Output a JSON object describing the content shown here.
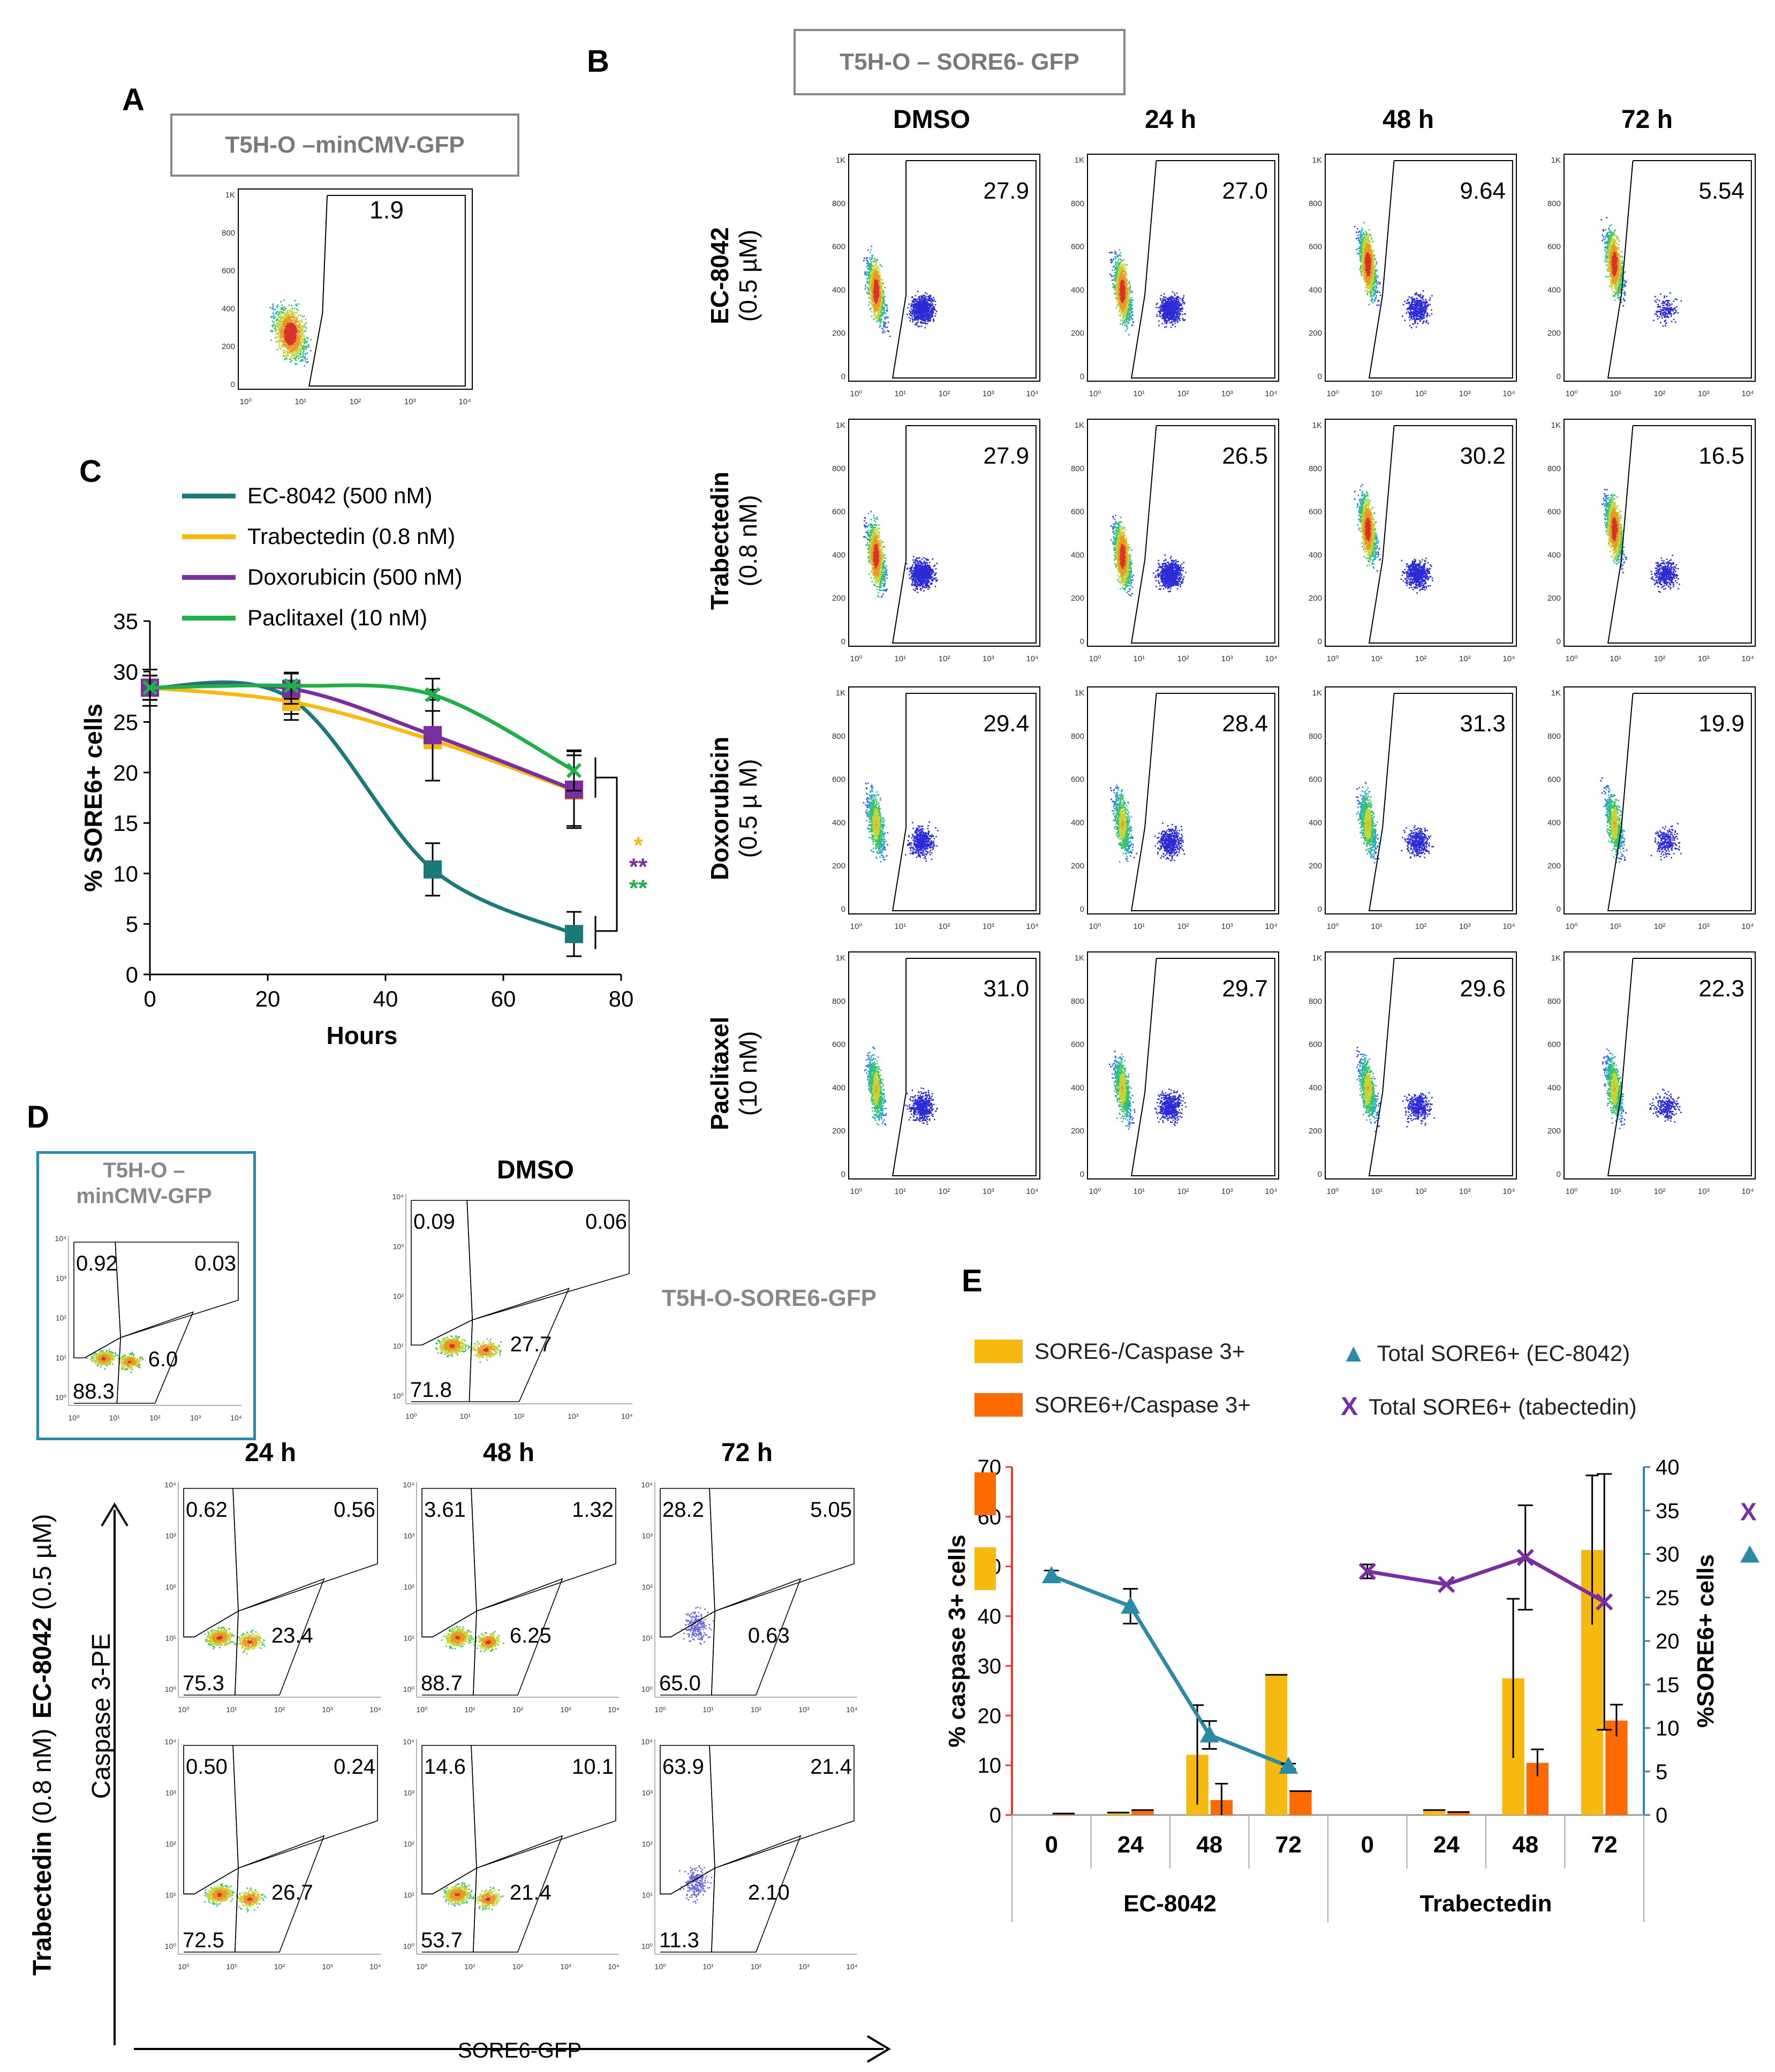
{
  "panels": {
    "a": "A",
    "b": "B",
    "c": "C",
    "d": "D",
    "e": "E"
  },
  "panelA": {
    "title": "T5H-O –minCMV-GFP",
    "value": "1.9"
  },
  "panelB": {
    "title": "T5H-O – SORE6- GFP",
    "columns": [
      "DMSO",
      "24 h",
      "48 h",
      "72 h"
    ],
    "rows": [
      {
        "name": "EC-8042",
        "dose": "(0.5 µM)",
        "values": [
          "27.9",
          "27.0",
          "9.64",
          "5.54"
        ]
      },
      {
        "name": "Trabectedin",
        "dose": "(0.8 nM)",
        "values": [
          "27.9",
          "26.5",
          "30.2",
          "16.5"
        ]
      },
      {
        "name": "Doxorubicin",
        "dose": "(0.5 µ M)",
        "values": [
          "29.4",
          "28.4",
          "31.3",
          "19.9"
        ]
      },
      {
        "name": "Paclitaxel",
        "dose": "(10 nM)",
        "values": [
          "31.0",
          "29.7",
          "29.6",
          "22.3"
        ]
      }
    ]
  },
  "facs_ticks": {
    "y": [
      "1K",
      "800",
      "600",
      "400",
      "200",
      "0"
    ],
    "x": [
      "10⁰",
      "10¹",
      "10²",
      "10³",
      "10⁴"
    ]
  },
  "quad_ticks": {
    "y": [
      "10⁴",
      "10³",
      "10²",
      "10¹",
      "10⁰"
    ],
    "x": [
      "10⁰",
      "10¹",
      "10²",
      "10³",
      "10⁴"
    ]
  },
  "colors": {
    "teal": "#1a7a7a",
    "yellow": "#f5b90f",
    "purple": "#7a2ea0",
    "green": "#1fb04a",
    "orange": "#ff6a00",
    "blue_line": "#2b8aa8"
  },
  "chart_data": [
    {
      "type": "line",
      "panel": "C",
      "xlabel": "Hours",
      "ylabel": "% SORE6+ cells",
      "xlim": [
        0,
        80
      ],
      "ylim": [
        0,
        35
      ],
      "xticks": [
        0,
        20,
        40,
        60,
        80
      ],
      "yticks": [
        0,
        5,
        10,
        15,
        20,
        25,
        30,
        35
      ],
      "x": [
        0,
        24,
        48,
        72
      ],
      "series": [
        {
          "name": "EC-8042 (500 nM)",
          "color": "#1a7a7a",
          "values": [
            28.4,
            27.3,
            10.4,
            4.0
          ],
          "errors": [
            1.2,
            1.5,
            2.6,
            2.2
          ],
          "marker": "square"
        },
        {
          "name": "Trabectedin (0.8 nM)",
          "color": "#f5b90f",
          "values": [
            28.4,
            27.0,
            23.2,
            18.2
          ],
          "errors": [
            1.2,
            1.8,
            4.0,
            3.5
          ],
          "marker": "square"
        },
        {
          "name": "Doxorubicin (500 nM)",
          "color": "#7a2ea0",
          "values": [
            28.4,
            28.3,
            23.7,
            18.3
          ],
          "errors": [
            1.2,
            1.5,
            4.5,
            3.8
          ],
          "marker": "square"
        },
        {
          "name": "Paclitaxel (10 nM)",
          "color": "#1fb04a",
          "values": [
            28.4,
            28.6,
            27.7,
            20.2
          ],
          "errors": [
            1.8,
            1.3,
            1.6,
            2.0
          ],
          "marker": "x"
        }
      ],
      "significance": [
        {
          "label": "*",
          "color": "#f5b90f"
        },
        {
          "label": "**",
          "color": "#7a2ea0"
        },
        {
          "label": "**",
          "color": "#1fb04a"
        }
      ]
    },
    {
      "type": "bar",
      "panel": "E",
      "categories": [
        "0",
        "24",
        "48",
        "72",
        "0",
        "24",
        "48",
        "72"
      ],
      "groups": [
        "EC-8042",
        "Trabectedin"
      ],
      "ylabel": "% caspase 3+ cells",
      "ylabel_right": "%SORE6+ cells",
      "ylim": [
        0,
        70
      ],
      "ylim_right": [
        0,
        40
      ],
      "yticks": [
        0,
        10,
        20,
        30,
        40,
        50,
        60,
        70
      ],
      "yticks_right": [
        0,
        5,
        10,
        15,
        20,
        25,
        30,
        35,
        40
      ],
      "series": [
        {
          "name": "SORE6-/Caspase 3+",
          "color": "#f5b90f",
          "values": [
            0,
            0.5,
            12.1,
            28.2,
            0,
            1.0,
            27.5,
            53.3
          ],
          "errors": [
            0,
            0,
            10,
            0,
            0,
            0,
            16,
            15
          ]
        },
        {
          "name": "SORE6+/Caspase 3+",
          "color": "#ff6a00",
          "values": [
            0.3,
            1.0,
            3.0,
            4.8,
            0,
            0.6,
            10.5,
            19.0
          ],
          "errors": [
            0,
            0,
            3.3,
            0,
            0,
            0,
            2.7,
            3.2
          ]
        }
      ],
      "lines": [
        {
          "name": "Total SORE6+ (EC-8042)",
          "color": "#2b8aa8",
          "marker": "triangle",
          "x": [
            0,
            1,
            2,
            3
          ],
          "values": [
            27.5,
            24.0,
            9.2,
            5.6
          ],
          "errors": [
            0.6,
            2.0,
            1.6,
            0.3
          ]
        },
        {
          "name": "Total SORE6+ (tabectedin)",
          "color": "#7a2ea0",
          "marker": "x",
          "x": [
            4,
            5,
            6,
            7
          ],
          "values": [
            28.0,
            26.5,
            29.6,
            24.5
          ],
          "errors": [
            0.8,
            0,
            6.0,
            14.7
          ]
        }
      ]
    }
  ],
  "panelD": {
    "ctrl_title_1": "T5H-O –",
    "ctrl_title_2": "minCMV-GFP",
    "ctrl_q": [
      "0.92",
      "0.03",
      "6.0",
      "88.3"
    ],
    "dmso_title": "DMSO",
    "dmso_q": [
      "0.09",
      "0.06",
      "27.7",
      "71.8"
    ],
    "side_label": "T5H-O-SORE6-GFP",
    "columns": [
      "24 h",
      "48 h",
      "72 h"
    ],
    "rows": [
      {
        "name": "EC-8042",
        "dose": "(0.5 µM)",
        "q": [
          [
            "0.62",
            "0.56",
            "23.4",
            "75.3"
          ],
          [
            "3.61",
            "1.32",
            "6.25",
            "88.7"
          ],
          [
            "28.2",
            "5.05",
            "0.63",
            "65.0"
          ]
        ]
      },
      {
        "name": "Trabectedin",
        "dose": "(0.8 nM)",
        "q": [
          [
            "0.50",
            "0.24",
            "26.7",
            "72.5"
          ],
          [
            "14.6",
            "10.1",
            "21.4",
            "53.7"
          ],
          [
            "63.9",
            "21.4",
            "2.10",
            "11.3"
          ]
        ]
      }
    ],
    "yaxis": "Caspase 3-PE",
    "xaxis": "SORE6-GFP"
  }
}
